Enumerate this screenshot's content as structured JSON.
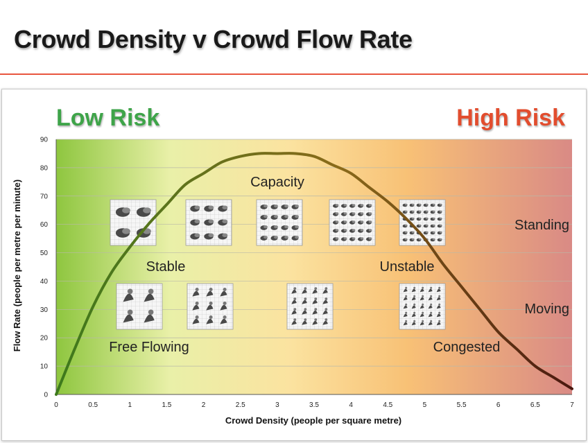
{
  "slide_title": "Crowd Density v Crowd Flow Rate",
  "colors": {
    "low_risk": "#3ea449",
    "high_risk": "#e24d2e",
    "curve_start": "#3d7a1c",
    "curve_end": "#4a1810",
    "title_rule": "#e8553d"
  },
  "chart_data": {
    "type": "line",
    "xlabel": "Crowd Density (people per square metre)",
    "ylabel": "Flow Rate (people per metre per minute)",
    "xlim": [
      0,
      7
    ],
    "ylim": [
      0,
      90
    ],
    "xticks": [
      "0",
      "0.5",
      "1",
      "1.5",
      "2",
      "2.5",
      "3",
      "3.5",
      "4",
      "4.5",
      "5",
      "5.5",
      "6",
      "6.5",
      "7"
    ],
    "yticks": [
      "0",
      "10",
      "20",
      "30",
      "40",
      "50",
      "60",
      "70",
      "80",
      "90"
    ],
    "grid": true,
    "x": [
      0,
      0.25,
      0.5,
      0.75,
      1,
      1.25,
      1.5,
      1.75,
      2,
      2.25,
      2.5,
      2.75,
      3,
      3.25,
      3.5,
      3.75,
      4,
      4.25,
      4.5,
      4.75,
      5,
      5.25,
      5.5,
      5.75,
      6,
      6.25,
      6.5,
      6.75,
      7
    ],
    "y": [
      0,
      16,
      31,
      43,
      52,
      60,
      67,
      74,
      78,
      82,
      84,
      85,
      85,
      85,
      84,
      81,
      78,
      73,
      68,
      62,
      55,
      46,
      38,
      30,
      22,
      16,
      10,
      6,
      2
    ],
    "risk_labels": {
      "low": "Low Risk",
      "high": "High Risk"
    },
    "annotations": {
      "capacity": "Capacity",
      "stable": "Stable",
      "unstable": "Unstable",
      "free_flowing": "Free Flowing",
      "congested": "Congested",
      "standing": "Standing",
      "moving": "Moving"
    }
  }
}
